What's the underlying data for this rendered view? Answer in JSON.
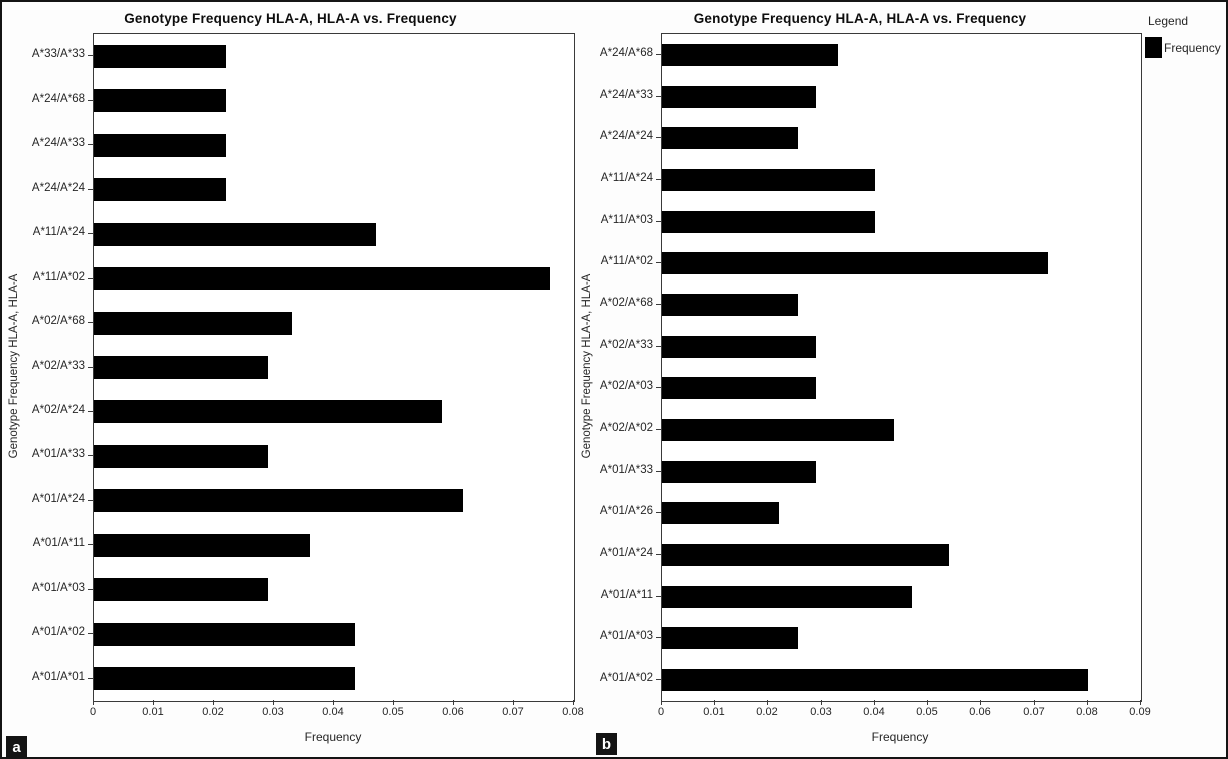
{
  "figure": {
    "panel_a_label": "a",
    "panel_b_label": "b"
  },
  "legend": {
    "title": "Legend",
    "entries": [
      {
        "label": "Frequency",
        "color": "#000000"
      }
    ]
  },
  "chart_data": [
    {
      "type": "bar",
      "orientation": "horizontal",
      "panel": "a",
      "title": "Genotype Frequency HLA-A, HLA-A vs. Frequency",
      "xlabel": "Frequency",
      "ylabel": "Genotype Frequency HLA-A, HLA-A",
      "xlim": [
        0,
        0.08
      ],
      "xtick_labels": [
        "0",
        "0.01",
        "0.02",
        "0.03",
        "0.04",
        "0.05",
        "0.06",
        "0.07",
        "0.08"
      ],
      "grid": false,
      "bar_color": "#000000",
      "category_order": "top-to-bottom",
      "categories": [
        "A*33/A*33",
        "A*24/A*68",
        "A*24/A*33",
        "A*24/A*24",
        "A*11/A*24",
        "A*11/A*02",
        "A*02/A*68",
        "A*02/A*33",
        "A*02/A*24",
        "A*01/A*33",
        "A*01/A*24",
        "A*01/A*11",
        "A*01/A*03",
        "A*01/A*02",
        "A*01/A*01"
      ],
      "values": [
        0.022,
        0.022,
        0.022,
        0.022,
        0.047,
        0.076,
        0.033,
        0.029,
        0.058,
        0.029,
        0.0615,
        0.036,
        0.029,
        0.0435,
        0.0435
      ]
    },
    {
      "type": "bar",
      "orientation": "horizontal",
      "panel": "b",
      "title": "Genotype Frequency HLA-A, HLA-A vs. Frequency",
      "xlabel": "Frequency",
      "ylabel": "Genotype Frequency HLA-A, HLA-A",
      "xlim": [
        0,
        0.09
      ],
      "xtick_labels": [
        "0",
        "0.01",
        "0.02",
        "0.03",
        "0.04",
        "0.05",
        "0.06",
        "0.07",
        "0.08",
        "0.09"
      ],
      "grid": false,
      "bar_color": "#000000",
      "category_order": "top-to-bottom",
      "categories": [
        "A*24/A*68",
        "A*24/A*33",
        "A*24/A*24",
        "A*11/A*24",
        "A*11/A*03",
        "A*11/A*02",
        "A*02/A*68",
        "A*02/A*33",
        "A*02/A*03",
        "A*02/A*02",
        "A*01/A*33",
        "A*01/A*26",
        "A*01/A*24",
        "A*01/A*11",
        "A*01/A*03",
        "A*01/A*02"
      ],
      "values": [
        0.033,
        0.029,
        0.0255,
        0.04,
        0.04,
        0.0725,
        0.0255,
        0.029,
        0.029,
        0.0435,
        0.029,
        0.022,
        0.054,
        0.047,
        0.0255,
        0.08
      ]
    }
  ]
}
